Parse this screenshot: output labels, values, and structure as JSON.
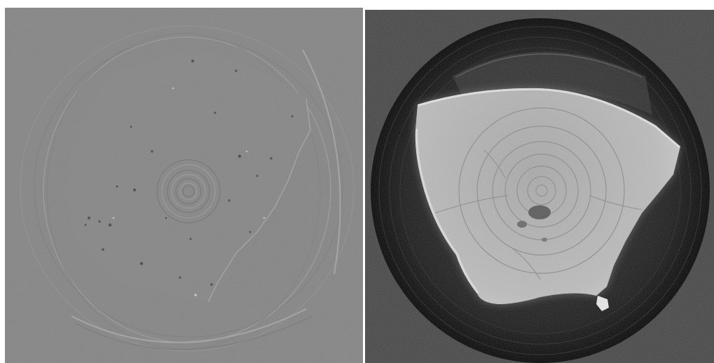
{
  "colors": {
    "page_background": "#ffffff",
    "left_panel_gray": "#858585",
    "right_panel_gray": "#474747",
    "right_disc_dark": "#111111",
    "right_sample_bright": "#cfcfcf"
  },
  "panels": [
    {
      "id": "left",
      "kind": "ct-slice-phase-contrast-image"
    },
    {
      "id": "right",
      "kind": "ct-slice-absorption-image"
    }
  ]
}
